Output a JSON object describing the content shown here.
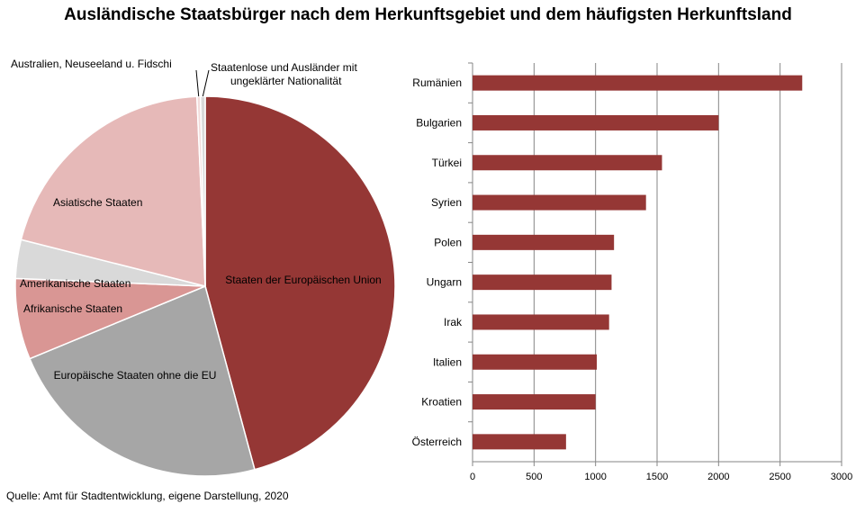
{
  "title": "Ausländische Staatsbürger nach dem Herkunftsgebiet und dem häufigsten Herkunftsland",
  "source": "Quelle: Amt für Stadtentwicklung, eigene Darstellung, 2020",
  "chart_data": [
    {
      "type": "pie",
      "labels": [
        "Staaten der Europäischen Union",
        "Europäische Staaten ohne die EU",
        "Afrikanische Staaten",
        "Amerikanische Staaten",
        "Asiatische Staaten",
        "Australien, Neuseeland u. Fidschi",
        "Staatenlose und Ausländer mit ungeklärter Nationalität"
      ],
      "values": [
        45.9,
        23.0,
        6.9,
        3.3,
        20.4,
        0.3,
        0.4
      ],
      "colors": [
        "#953735",
        "#A6A6A6",
        "#D99694",
        "#D9D9D9",
        "#E6B9B8",
        "#F2DCDB",
        "#D9D9D9"
      ]
    },
    {
      "type": "bar",
      "orientation": "horizontal",
      "categories": [
        "Rumänien",
        "Bulgarien",
        "Türkei",
        "Syrien",
        "Polen",
        "Ungarn",
        "Irak",
        "Italien",
        "Kroatien",
        "Österreich"
      ],
      "values": [
        2680,
        2000,
        1540,
        1410,
        1150,
        1130,
        1110,
        1010,
        1000,
        760
      ],
      "xlim": [
        0,
        3000
      ],
      "xticks": [
        0,
        500,
        1000,
        1500,
        2000,
        2500,
        3000
      ],
      "grid": true,
      "color": "#953735"
    }
  ]
}
